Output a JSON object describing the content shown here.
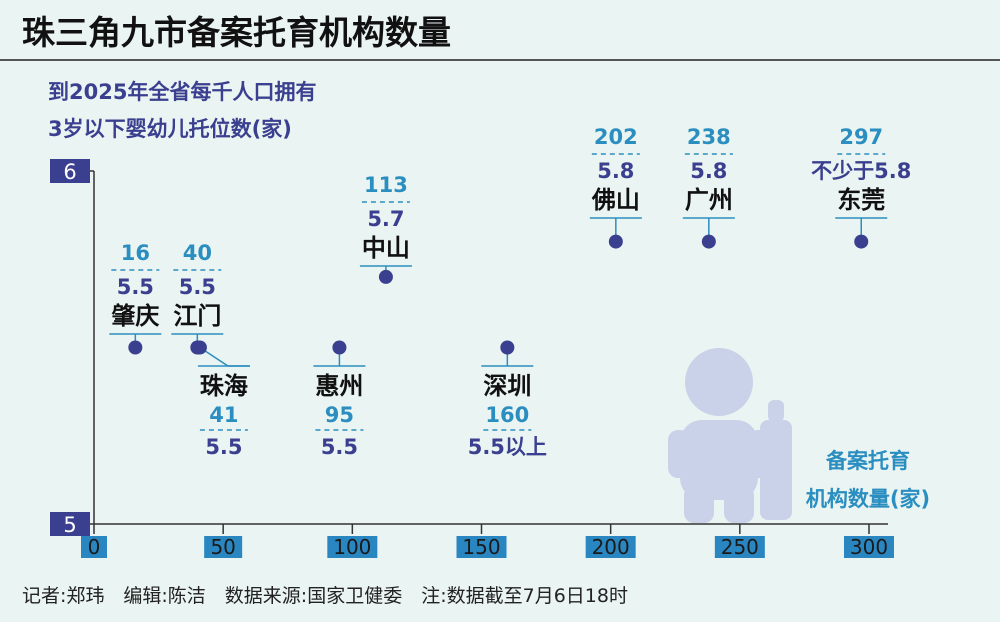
{
  "header": {
    "title": "珠三角九市备案托育机构数量"
  },
  "chart_data": {
    "type": "scatter",
    "title": "珠三角九市备案托育机构数量",
    "ylabel_lines": [
      "到2025年全省每千人口拥有",
      "3岁以下婴幼儿托位数(家)"
    ],
    "xlabel_lines": [
      "备案托育",
      "机构数量(家)"
    ],
    "xlim": [
      0,
      300
    ],
    "ylim": [
      5,
      6
    ],
    "x_ticks": [
      {
        "value": 0,
        "label": "0"
      },
      {
        "value": 50,
        "label": "50"
      },
      {
        "value": 100,
        "label": "100"
      },
      {
        "value": 150,
        "label": "150"
      },
      {
        "value": 200,
        "label": "200"
      },
      {
        "value": 250,
        "label": "250"
      },
      {
        "value": 300,
        "label": "300"
      }
    ],
    "y_ticks": [
      {
        "value": 5,
        "label": "5"
      },
      {
        "value": 6,
        "label": "6"
      }
    ],
    "points": [
      {
        "city": "肇庆",
        "x": 16,
        "y": 5.5,
        "count_label": "16",
        "target_label": "5.5"
      },
      {
        "city": "江门",
        "x": 40,
        "y": 5.5,
        "count_label": "40",
        "target_label": "5.5"
      },
      {
        "city": "珠海",
        "x": 41,
        "y": 5.5,
        "count_label": "41",
        "target_label": "5.5"
      },
      {
        "city": "惠州",
        "x": 95,
        "y": 5.5,
        "count_label": "95",
        "target_label": "5.5"
      },
      {
        "city": "中山",
        "x": 113,
        "y": 5.7,
        "count_label": "113",
        "target_label": "5.7"
      },
      {
        "city": "深圳",
        "x": 160,
        "y": 5.5,
        "count_label": "160",
        "target_label": "5.5以上"
      },
      {
        "city": "佛山",
        "x": 202,
        "y": 5.8,
        "count_label": "202",
        "target_label": "5.8"
      },
      {
        "city": "广州",
        "x": 238,
        "y": 5.8,
        "count_label": "238",
        "target_label": "5.8"
      },
      {
        "city": "东莞",
        "x": 297,
        "y": 5.8,
        "count_label": "297",
        "target_label": "不少于5.8"
      }
    ],
    "colors": {
      "accent": "#3a3f8f",
      "count_text": "#2a8ec0",
      "target_text": "#3a3f8f",
      "city_text": "#111111",
      "axis": "#333333",
      "background": "#eaf4f2",
      "icon": "#c9d2e8"
    }
  },
  "footer": {
    "credits": "记者:郑玮　编辑:陈洁　数据来源:国家卫健委　注:数据截至7月6日18时"
  }
}
